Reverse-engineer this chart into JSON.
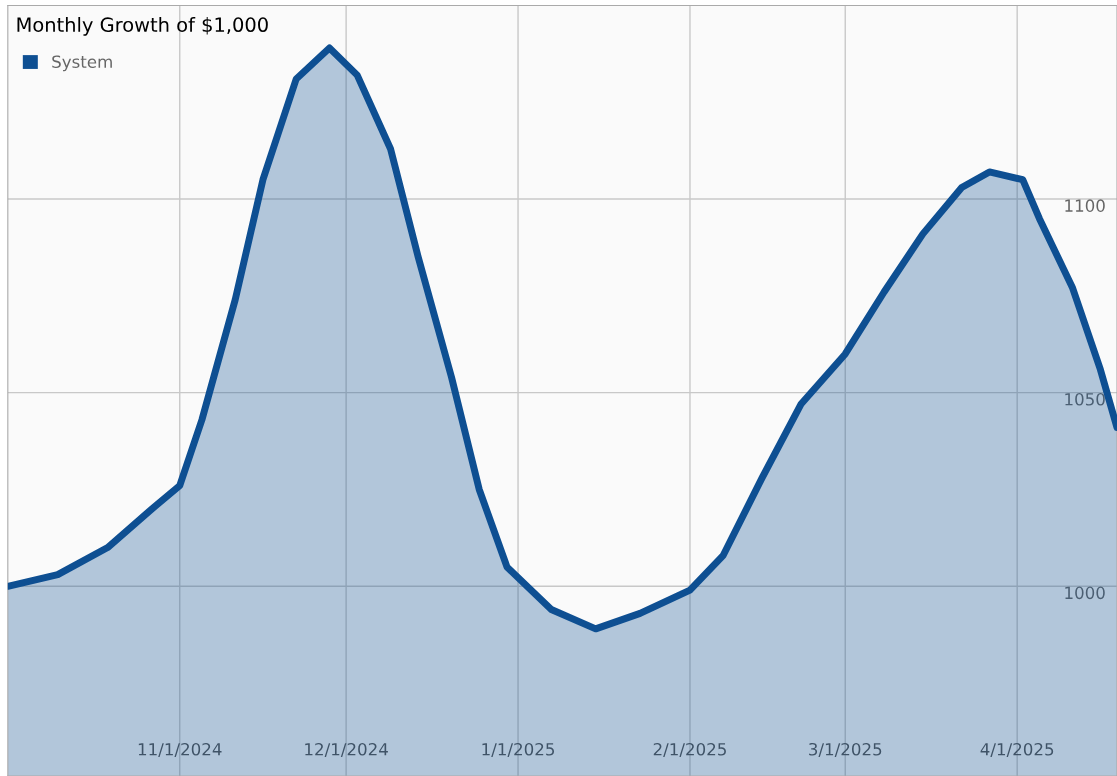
{
  "chart_data": {
    "type": "area",
    "title": "Monthly Growth of $1,000",
    "x": [
      "2024-10-01",
      "2024-10-10",
      "2024-10-19",
      "2024-10-27",
      "2024-11-01",
      "2024-11-05",
      "2024-11-11",
      "2024-11-16",
      "2024-11-22",
      "2024-11-28",
      "2024-12-03",
      "2024-12-09",
      "2024-12-14",
      "2024-12-20",
      "2024-12-25",
      "2024-12-30",
      "2025-01-07",
      "2025-01-15",
      "2025-01-23",
      "2025-02-01",
      "2025-02-07",
      "2025-02-14",
      "2025-02-21",
      "2025-03-01",
      "2025-03-08",
      "2025-03-15",
      "2025-03-22",
      "2025-03-27",
      "2025-04-02",
      "2025-04-05",
      "2025-04-11",
      "2025-04-16",
      "2025-04-19"
    ],
    "series": [
      {
        "name": "System",
        "color": "#0e4f92",
        "values": [
          1000,
          1003,
          1010,
          1020,
          1026,
          1043,
          1074,
          1105,
          1131,
          1139,
          1132,
          1113,
          1085,
          1054,
          1025,
          1005,
          994,
          989,
          993,
          999,
          1008,
          1028,
          1047,
          1060,
          1076,
          1091,
          1103,
          1107,
          1105,
          1095,
          1077,
          1056,
          1041
        ]
      }
    ],
    "xlim": [
      "2024-10-01",
      "2025-04-19"
    ],
    "xticks": [
      {
        "value": "2024-11-01",
        "label": "11/1/2024"
      },
      {
        "value": "2024-12-01",
        "label": "12/1/2024"
      },
      {
        "value": "2025-01-01",
        "label": "1/1/2025"
      },
      {
        "value": "2025-02-01",
        "label": "2/1/2025"
      },
      {
        "value": "2025-03-01",
        "label": "3/1/2025"
      },
      {
        "value": "2025-04-01",
        "label": "4/1/2025"
      }
    ],
    "ylim": [
      951,
      1150
    ],
    "yticks": [
      1000,
      1050,
      1100
    ],
    "grid": true,
    "legend": "top left",
    "line_style": "solid",
    "marker": "none"
  }
}
